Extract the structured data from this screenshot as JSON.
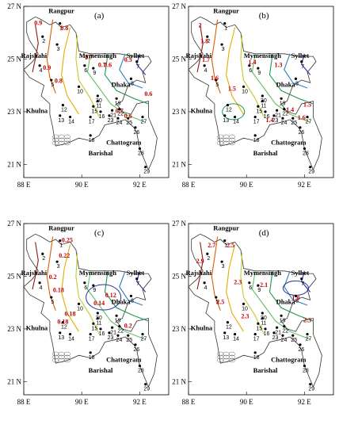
{
  "panels": [
    {
      "tag": "(a)",
      "contour_labels": [
        "0.9",
        "0.8",
        "0.7",
        "0.6",
        "0.5",
        "0.9",
        "0.8",
        "0.6",
        "0.7",
        "0.6",
        "0.7"
      ]
    },
    {
      "tag": "(b)",
      "contour_labels": [
        "2",
        "1.8",
        "1.7",
        "1.6",
        "1.4",
        "1.3",
        "1.5",
        "1.4",
        "1.4",
        "1.5",
        "1.6"
      ]
    },
    {
      "tag": "(c)",
      "contour_labels": [
        "0.25",
        "0.22",
        "0.2",
        "0.18",
        "0.14",
        "0.12",
        "0.18",
        "0.18",
        "0.2"
      ]
    },
    {
      "tag": "(d)",
      "contour_labels": [
        "2.7",
        "2.5",
        "2.9",
        "2.1",
        "2.3",
        "1.9",
        "2.5",
        "2.3",
        "2.3"
      ]
    }
  ],
  "regions": {
    "rangpur": "Rangpur",
    "rajshahi": "Rajshahi",
    "mymensingh": "Mymensingh",
    "sylhet": "Sylhet",
    "dhaka": "Dhaka",
    "khulna": "Khulna",
    "barishal": "Barishal",
    "chattogram": "Chattogram"
  },
  "axes": {
    "lat_ticks": [
      "27 N",
      "25 N",
      "23 N",
      "21 N"
    ],
    "lon_ticks": [
      "88 E",
      "90 E",
      "92 E"
    ]
  },
  "stations": [
    "1",
    "2",
    "3",
    "4",
    "5",
    "6",
    "7",
    "8",
    "9",
    "10",
    "11",
    "12",
    "13",
    "14",
    "15",
    "16",
    "17",
    "18",
    "19",
    "20",
    "21",
    "22",
    "23",
    "24",
    "25",
    "26",
    "27",
    "28",
    "29"
  ]
}
